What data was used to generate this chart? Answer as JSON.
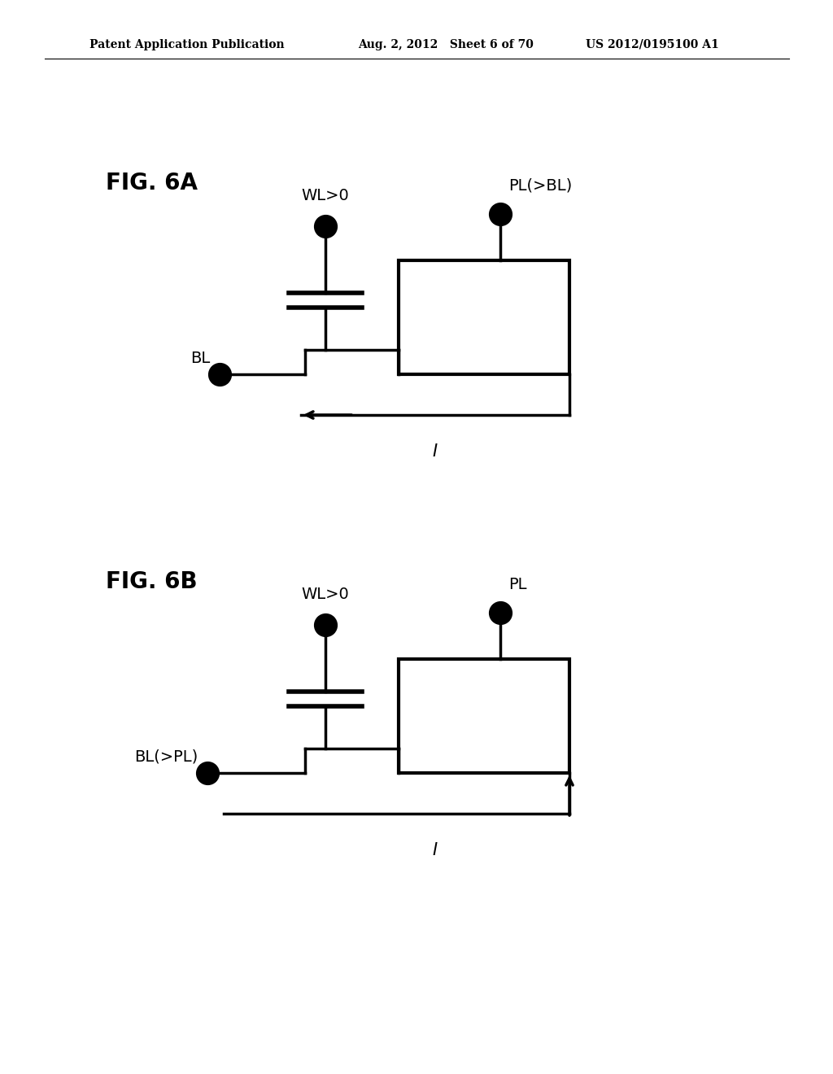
{
  "header_left": "Patent Application Publication",
  "header_mid": "Aug. 2, 2012   Sheet 6 of 70",
  "header_right": "US 2012/0195100 A1",
  "fig6a_label": "FIG. 6A",
  "fig6b_label": "FIG. 6B",
  "fig6a": {
    "wl_label": "WL>0",
    "pl_label": "PL(>BL)",
    "bl_label": "BL",
    "i_label": "I"
  },
  "fig6b": {
    "wl_label": "WL>0",
    "pl_label": "PL",
    "bl_label": "BL(>PL)",
    "i_label": "I"
  },
  "lw": 2.5,
  "dot_size": 200,
  "bg_color": "#ffffff",
  "text_color": "#000000",
  "line_color": "#000000"
}
